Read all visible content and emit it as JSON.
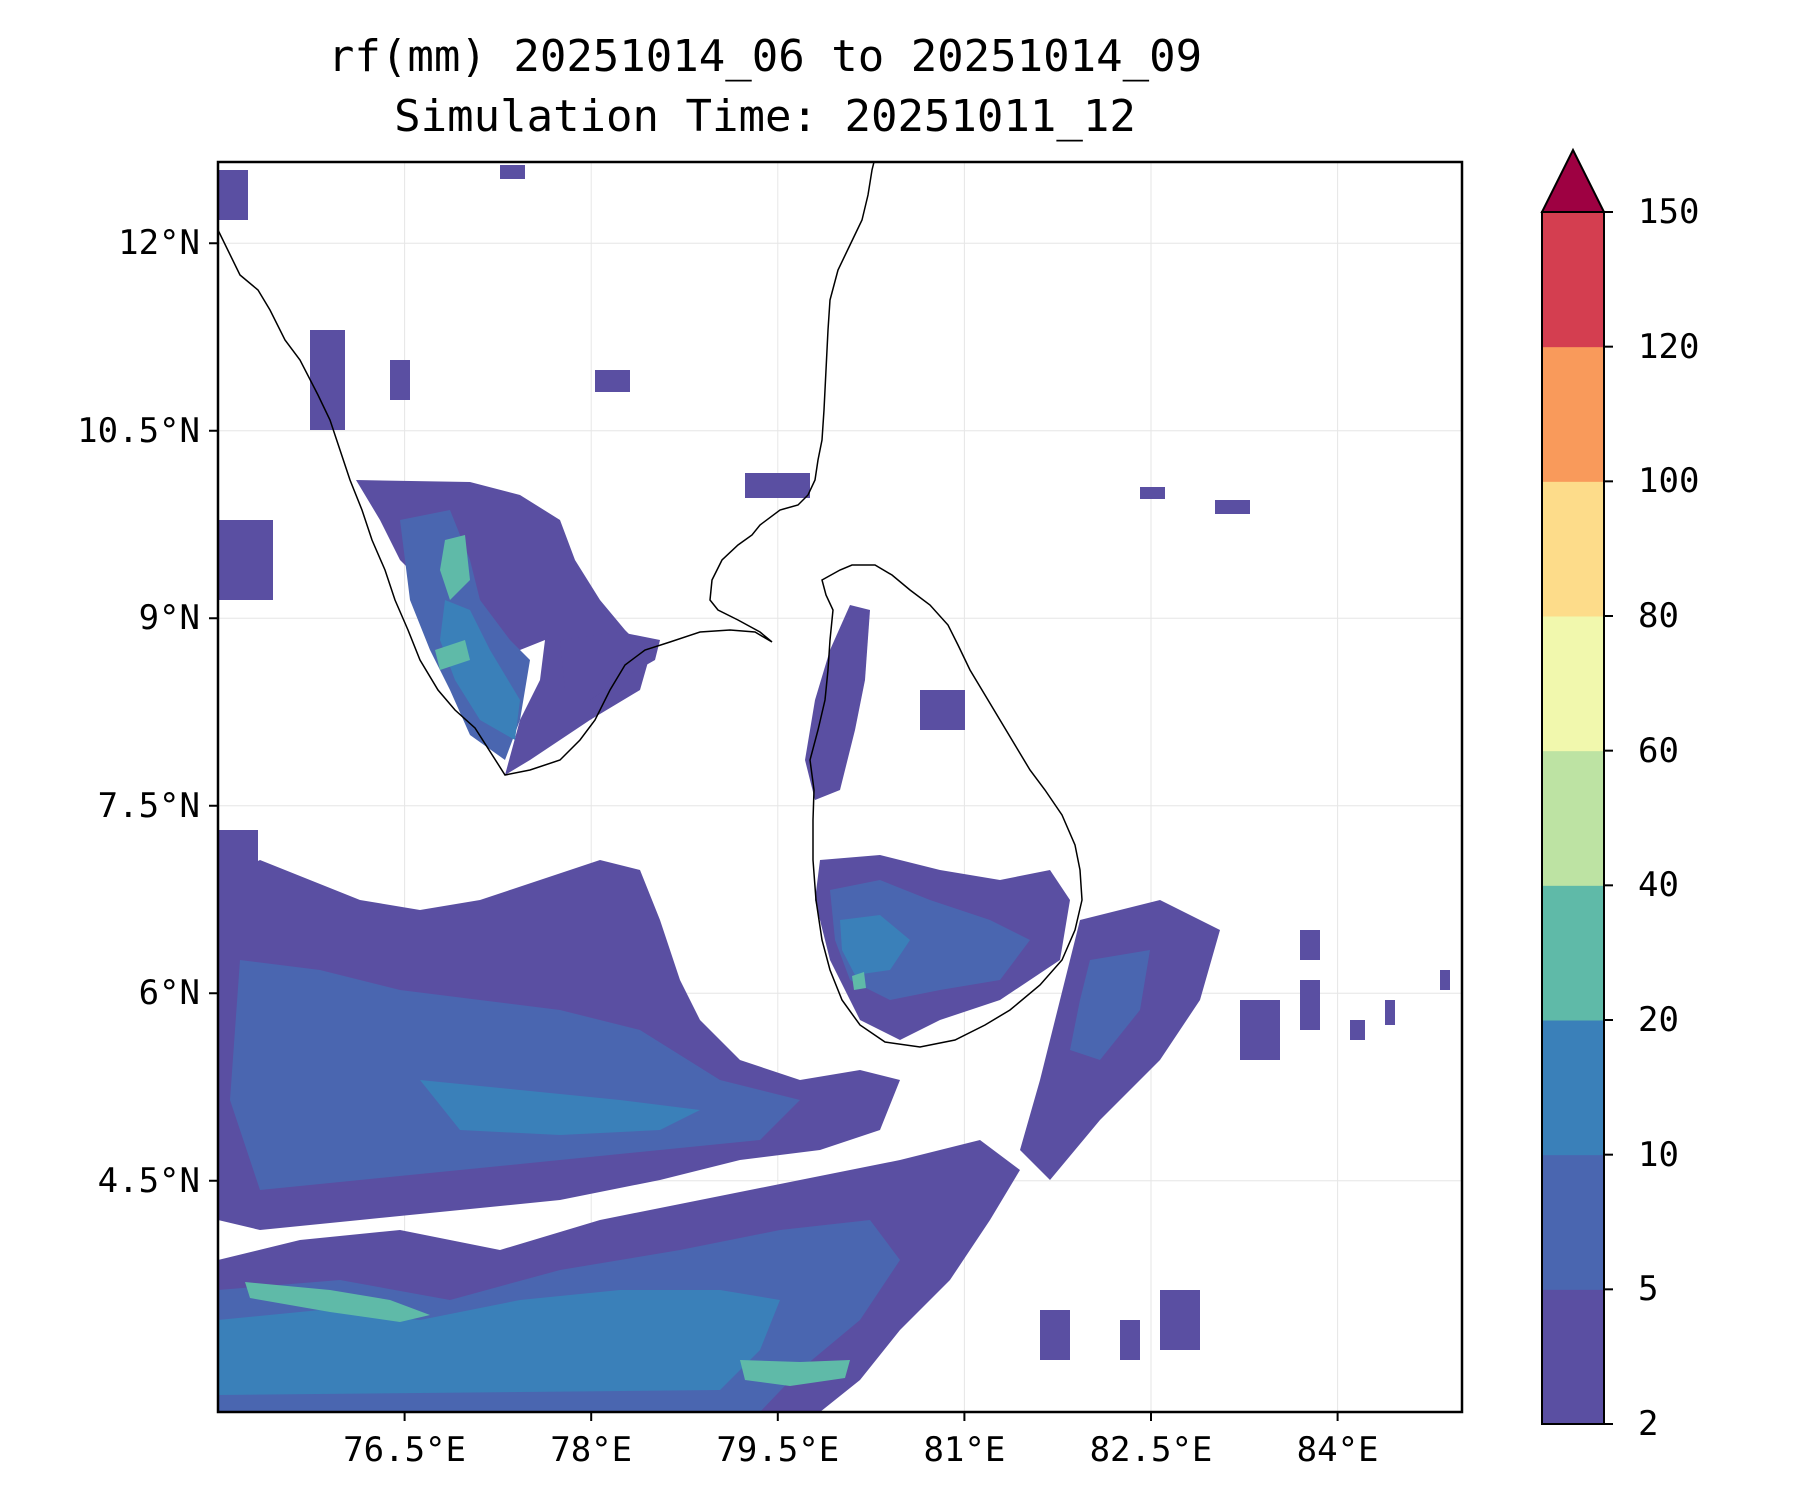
{
  "title_line1": "rf(mm) 20251014_06 to 20251014_09",
  "title_line2": "Simulation Time: 20251011_12",
  "map": {
    "lon_range": [
      75.0,
      85.0
    ],
    "lat_range": [
      2.65,
      12.65
    ],
    "gridlines": true,
    "lat_ticks": [
      {
        "value": 12.0,
        "label": "12°N"
      },
      {
        "value": 10.5,
        "label": "10.5°N"
      },
      {
        "value": 9.0,
        "label": "9°N"
      },
      {
        "value": 7.5,
        "label": "7.5°N"
      },
      {
        "value": 6.0,
        "label": "6°N"
      },
      {
        "value": 4.5,
        "label": "4.5°N"
      }
    ],
    "lon_ticks": [
      {
        "value": 76.5,
        "label": "76.5°E"
      },
      {
        "value": 78.0,
        "label": "78°E"
      },
      {
        "value": 79.5,
        "label": "79.5°E"
      },
      {
        "value": 81.0,
        "label": "81°E"
      },
      {
        "value": 82.5,
        "label": "82.5°E"
      },
      {
        "value": 84.0,
        "label": "84°E"
      }
    ]
  },
  "colorbar": {
    "levels": [
      "2",
      "5",
      "10",
      "20",
      "40",
      "60",
      "80",
      "100",
      "120",
      "150"
    ],
    "colors": [
      "#5a4fa2",
      "#4a66b0",
      "#3a80b9",
      "#5fbaa8",
      "#bde3a3",
      "#f1f8ad",
      "#fddc8a",
      "#f99a5b",
      "#d43e50"
    ],
    "extend_color": "#9e0142",
    "extend": "max"
  }
}
